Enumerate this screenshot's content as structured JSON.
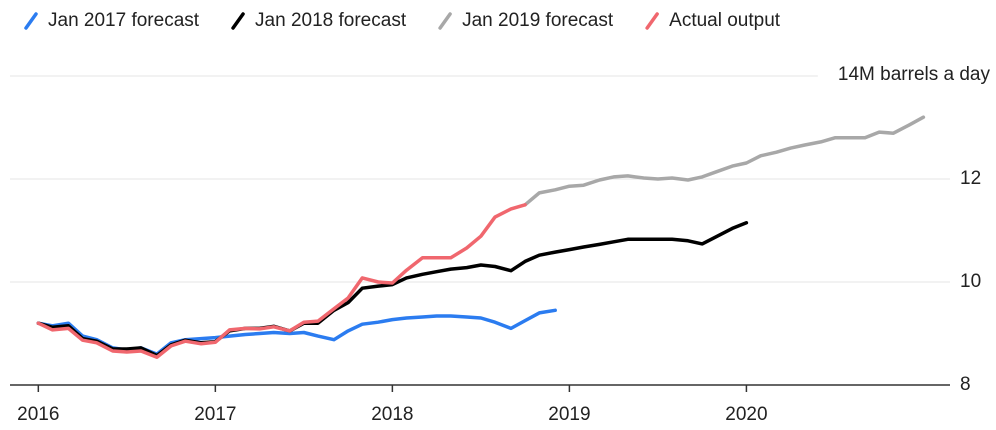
{
  "chart_data": {
    "type": "line",
    "xlim": [
      2015.84,
      2021.15
    ],
    "xticks": [
      2016,
      2017,
      2018,
      2019,
      2020
    ],
    "ylim": [
      8,
      14
    ],
    "yticks": [
      8,
      10,
      12,
      {
        "value": 14,
        "label": "14M barrels a day"
      }
    ],
    "grid": true,
    "legend": "top",
    "series": [
      {
        "name": "Jan 2017 forecast",
        "color": "#2b7cf0",
        "x": [
          2016,
          2016.08,
          2016.17,
          2016.25,
          2016.33,
          2016.42,
          2016.5,
          2016.58,
          2016.67,
          2016.75,
          2016.83,
          2016.92,
          2017,
          2017.08,
          2017.17,
          2017.25,
          2017.33,
          2017.42,
          2017.5,
          2017.58,
          2017.67,
          2017.75,
          2017.83,
          2017.92,
          2018,
          2018.08,
          2018.17,
          2018.25,
          2018.33,
          2018.42,
          2018.5,
          2018.58,
          2018.67,
          2018.75,
          2018.83,
          2018.92
        ],
        "values": [
          9.2,
          9.15,
          9.2,
          8.95,
          8.88,
          8.72,
          8.68,
          8.72,
          8.6,
          8.82,
          8.88,
          8.9,
          8.92,
          8.95,
          8.98,
          9.0,
          9.02,
          9.0,
          9.02,
          8.95,
          8.88,
          9.05,
          9.18,
          9.22,
          9.27,
          9.3,
          9.32,
          9.34,
          9.34,
          9.32,
          9.3,
          9.22,
          9.1,
          9.25,
          9.4,
          9.45
        ]
      },
      {
        "name": "Jan 2018 forecast",
        "color": "#000000",
        "x": [
          2016,
          2016.08,
          2016.17,
          2016.25,
          2016.33,
          2016.42,
          2016.5,
          2016.58,
          2016.67,
          2016.75,
          2016.83,
          2016.92,
          2017,
          2017.08,
          2017.17,
          2017.25,
          2017.33,
          2017.42,
          2017.5,
          2017.58,
          2017.67,
          2017.75,
          2017.83,
          2017.92,
          2018,
          2018.08,
          2018.17,
          2018.25,
          2018.33,
          2018.42,
          2018.5,
          2018.58,
          2018.67,
          2018.75,
          2018.83,
          2018.92,
          2019,
          2019.08,
          2019.17,
          2019.25,
          2019.33,
          2019.42,
          2019.5,
          2019.58,
          2019.67,
          2019.75,
          2019.83,
          2019.92,
          2020
        ],
        "values": [
          9.2,
          9.12,
          9.15,
          8.9,
          8.85,
          8.7,
          8.7,
          8.72,
          8.57,
          8.78,
          8.87,
          8.82,
          8.84,
          9.05,
          9.1,
          9.1,
          9.14,
          9.05,
          9.2,
          9.2,
          9.45,
          9.6,
          9.88,
          9.92,
          9.95,
          10.08,
          10.15,
          10.2,
          10.25,
          10.28,
          10.33,
          10.3,
          10.22,
          10.4,
          10.52,
          10.58,
          10.63,
          10.68,
          10.73,
          10.78,
          10.83,
          10.83,
          10.83,
          10.83,
          10.8,
          10.74,
          10.88,
          11.04,
          11.15
        ]
      },
      {
        "name": "Jan 2019 forecast",
        "color": "#a8a8a8",
        "x": [
          2018.75,
          2018.83,
          2018.92,
          2019,
          2019.08,
          2019.17,
          2019.25,
          2019.33,
          2019.42,
          2019.5,
          2019.58,
          2019.67,
          2019.75,
          2019.83,
          2019.92,
          2020,
          2020.08,
          2020.17,
          2020.25,
          2020.33,
          2020.42,
          2020.5,
          2020.58,
          2020.67,
          2020.75,
          2020.83,
          2020.92,
          2021
        ],
        "values": [
          11.5,
          11.73,
          11.79,
          11.86,
          11.88,
          11.98,
          12.04,
          12.06,
          12.02,
          12.0,
          12.02,
          11.98,
          12.04,
          12.14,
          12.25,
          12.31,
          12.45,
          12.52,
          12.6,
          12.66,
          12.72,
          12.8,
          12.8,
          12.8,
          12.91,
          12.89,
          13.05,
          13.2
        ]
      },
      {
        "name": "Actual output",
        "color": "#f0676e",
        "x": [
          2016,
          2016.08,
          2016.17,
          2016.25,
          2016.33,
          2016.42,
          2016.5,
          2016.58,
          2016.67,
          2016.75,
          2016.83,
          2016.92,
          2017,
          2017.08,
          2017.17,
          2017.25,
          2017.33,
          2017.42,
          2017.5,
          2017.58,
          2017.67,
          2017.75,
          2017.83,
          2017.92,
          2018,
          2018.08,
          2018.17,
          2018.25,
          2018.33,
          2018.42,
          2018.5,
          2018.58,
          2018.67,
          2018.75
        ],
        "values": [
          9.2,
          9.07,
          9.1,
          8.87,
          8.82,
          8.66,
          8.64,
          8.66,
          8.54,
          8.76,
          8.85,
          8.8,
          8.83,
          9.07,
          9.1,
          9.09,
          9.13,
          9.05,
          9.22,
          9.24,
          9.48,
          9.69,
          10.08,
          10.0,
          9.98,
          10.23,
          10.47,
          10.47,
          10.47,
          10.66,
          10.89,
          11.26,
          11.42,
          11.5
        ]
      }
    ]
  }
}
